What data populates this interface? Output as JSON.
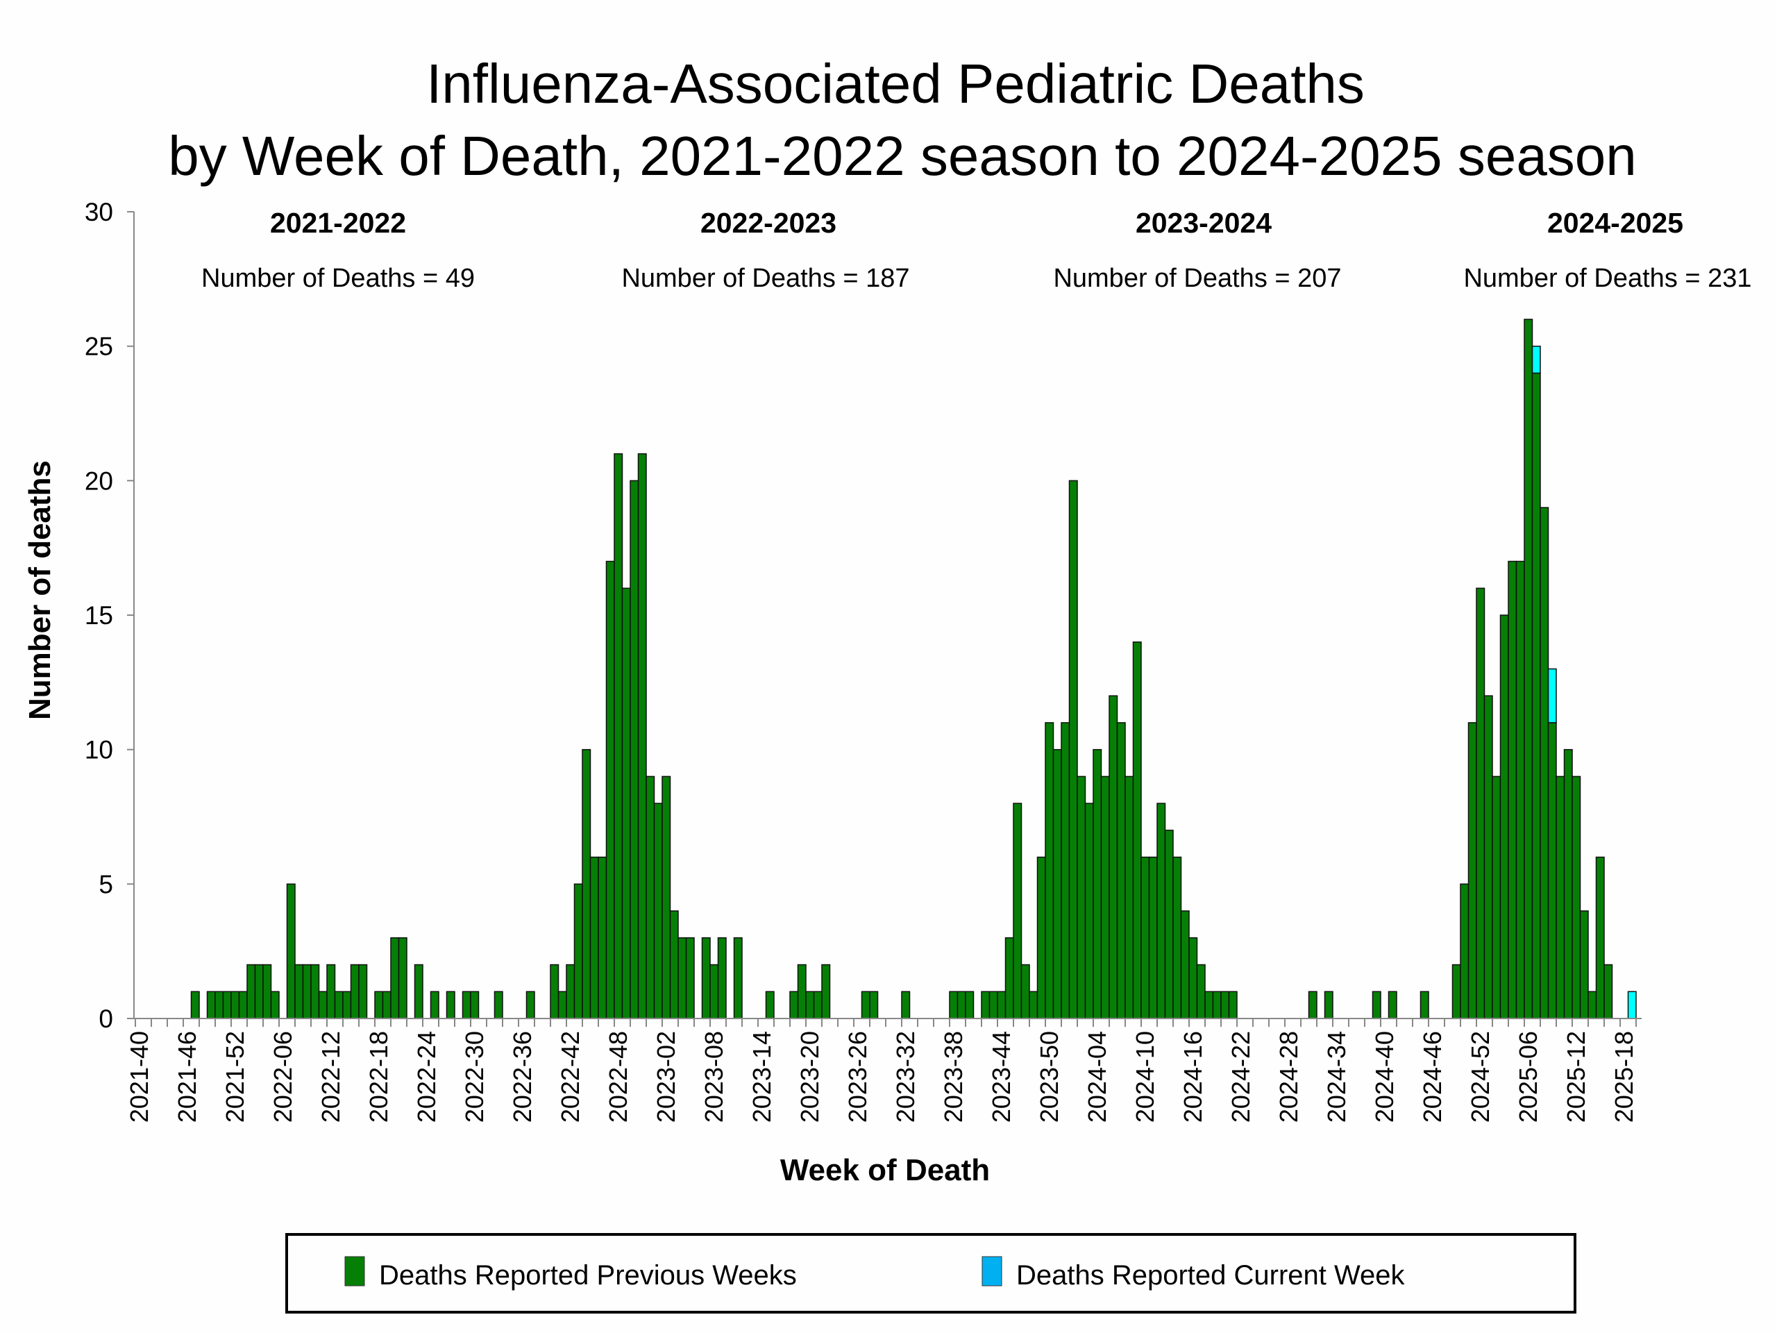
{
  "chart_data": {
    "type": "bar",
    "stacked": true,
    "title": [
      "Influenza-Associated Pediatric Deaths",
      "by Week of Death, 2021-2022 season to 2024-2025 season"
    ],
    "xlabel": "Week of Death",
    "ylabel": "Number of deaths",
    "ylim": [
      0,
      30
    ],
    "yticks": [
      0,
      5,
      10,
      15,
      20,
      25,
      30
    ],
    "grid": false,
    "legend_position": "bottom",
    "categories": [
      "2021-40",
      "2021-41",
      "2021-42",
      "2021-43",
      "2021-44",
      "2021-45",
      "2021-46",
      "2021-47",
      "2021-48",
      "2021-49",
      "2021-50",
      "2021-51",
      "2021-52",
      "2022-01",
      "2022-02",
      "2022-03",
      "2022-04",
      "2022-05",
      "2022-06",
      "2022-07",
      "2022-08",
      "2022-09",
      "2022-10",
      "2022-11",
      "2022-12",
      "2022-13",
      "2022-14",
      "2022-15",
      "2022-16",
      "2022-17",
      "2022-18",
      "2022-19",
      "2022-20",
      "2022-21",
      "2022-22",
      "2022-23",
      "2022-24",
      "2022-25",
      "2022-26",
      "2022-27",
      "2022-28",
      "2022-29",
      "2022-30",
      "2022-31",
      "2022-32",
      "2022-33",
      "2022-34",
      "2022-35",
      "2022-36",
      "2022-37",
      "2022-38",
      "2022-39",
      "2022-40",
      "2022-41",
      "2022-42",
      "2022-43",
      "2022-44",
      "2022-45",
      "2022-46",
      "2022-47",
      "2022-48",
      "2022-49",
      "2022-50",
      "2022-51",
      "2022-52",
      "2023-01",
      "2023-02",
      "2023-03",
      "2023-04",
      "2023-05",
      "2023-06",
      "2023-07",
      "2023-08",
      "2023-09",
      "2023-10",
      "2023-11",
      "2023-12",
      "2023-13",
      "2023-14",
      "2023-15",
      "2023-16",
      "2023-17",
      "2023-18",
      "2023-19",
      "2023-20",
      "2023-21",
      "2023-22",
      "2023-23",
      "2023-24",
      "2023-25",
      "2023-26",
      "2023-27",
      "2023-28",
      "2023-29",
      "2023-30",
      "2023-31",
      "2023-32",
      "2023-33",
      "2023-34",
      "2023-35",
      "2023-36",
      "2023-37",
      "2023-38",
      "2023-39",
      "2023-40",
      "2023-41",
      "2023-42",
      "2023-43",
      "2023-44",
      "2023-45",
      "2023-46",
      "2023-47",
      "2023-48",
      "2023-49",
      "2023-50",
      "2023-51",
      "2023-52",
      "2024-01",
      "2024-02",
      "2024-03",
      "2024-04",
      "2024-05",
      "2024-06",
      "2024-07",
      "2024-08",
      "2024-09",
      "2024-10",
      "2024-11",
      "2024-12",
      "2024-13",
      "2024-14",
      "2024-15",
      "2024-16",
      "2024-17",
      "2024-18",
      "2024-19",
      "2024-20",
      "2024-21",
      "2024-22",
      "2024-23",
      "2024-24",
      "2024-25",
      "2024-26",
      "2024-27",
      "2024-28",
      "2024-29",
      "2024-30",
      "2024-31",
      "2024-32",
      "2024-33",
      "2024-34",
      "2024-35",
      "2024-36",
      "2024-37",
      "2024-38",
      "2024-39",
      "2024-40",
      "2024-41",
      "2024-42",
      "2024-43",
      "2024-44",
      "2024-45",
      "2024-46",
      "2024-47",
      "2024-48",
      "2024-49",
      "2024-50",
      "2024-51",
      "2024-52",
      "2025-01",
      "2025-02",
      "2025-03",
      "2025-04",
      "2025-05",
      "2025-06",
      "2025-07",
      "2025-08",
      "2025-09",
      "2025-10",
      "2025-11",
      "2025-12",
      "2025-13",
      "2025-14",
      "2025-15",
      "2025-16",
      "2025-17",
      "2025-18",
      "2025-19"
    ],
    "tick_every": 6,
    "series": [
      {
        "name": "Deaths Reported Previous Weeks",
        "color": "#067F06",
        "values": [
          0,
          0,
          0,
          0,
          0,
          0,
          0,
          1,
          0,
          1,
          1,
          1,
          1,
          1,
          2,
          2,
          2,
          1,
          0,
          5,
          2,
          2,
          2,
          1,
          2,
          1,
          1,
          2,
          2,
          0,
          1,
          1,
          3,
          3,
          0,
          2,
          0,
          1,
          0,
          1,
          0,
          1,
          1,
          0,
          0,
          1,
          0,
          0,
          0,
          1,
          0,
          0,
          2,
          1,
          2,
          5,
          10,
          6,
          6,
          17,
          21,
          16,
          20,
          21,
          9,
          8,
          9,
          4,
          3,
          3,
          0,
          3,
          2,
          3,
          0,
          3,
          0,
          0,
          0,
          1,
          0,
          0,
          1,
          2,
          1,
          1,
          2,
          0,
          0,
          0,
          0,
          1,
          1,
          0,
          0,
          0,
          1,
          0,
          0,
          0,
          0,
          0,
          1,
          1,
          1,
          0,
          1,
          1,
          1,
          3,
          8,
          2,
          1,
          6,
          11,
          10,
          11,
          20,
          9,
          8,
          10,
          9,
          12,
          11,
          9,
          14,
          6,
          6,
          8,
          7,
          6,
          4,
          3,
          2,
          1,
          1,
          1,
          1,
          0,
          0,
          0,
          0,
          0,
          0,
          0,
          0,
          0,
          1,
          0,
          1,
          0,
          0,
          0,
          0,
          0,
          1,
          0,
          1,
          0,
          0,
          0,
          1,
          0,
          0,
          0,
          2,
          5,
          11,
          16,
          12,
          9,
          15,
          17,
          17,
          26,
          24,
          19,
          11,
          9,
          10,
          9,
          4,
          1,
          6,
          2,
          0,
          0,
          0
        ]
      },
      {
        "name": "Deaths Reported Current Week",
        "color": "#00FFFF",
        "legend_color": "#00B0F0",
        "values": [
          0,
          0,
          0,
          0,
          0,
          0,
          0,
          0,
          0,
          0,
          0,
          0,
          0,
          0,
          0,
          0,
          0,
          0,
          0,
          0,
          0,
          0,
          0,
          0,
          0,
          0,
          0,
          0,
          0,
          0,
          0,
          0,
          0,
          0,
          0,
          0,
          0,
          0,
          0,
          0,
          0,
          0,
          0,
          0,
          0,
          0,
          0,
          0,
          0,
          0,
          0,
          0,
          0,
          0,
          0,
          0,
          0,
          0,
          0,
          0,
          0,
          0,
          0,
          0,
          0,
          0,
          0,
          0,
          0,
          0,
          0,
          0,
          0,
          0,
          0,
          0,
          0,
          0,
          0,
          0,
          0,
          0,
          0,
          0,
          0,
          0,
          0,
          0,
          0,
          0,
          0,
          0,
          0,
          0,
          0,
          0,
          0,
          0,
          0,
          0,
          0,
          0,
          0,
          0,
          0,
          0,
          0,
          0,
          0,
          0,
          0,
          0,
          0,
          0,
          0,
          0,
          0,
          0,
          0,
          0,
          0,
          0,
          0,
          0,
          0,
          0,
          0,
          0,
          0,
          0,
          0,
          0,
          0,
          0,
          0,
          0,
          0,
          0,
          0,
          0,
          0,
          0,
          0,
          0,
          0,
          0,
          0,
          0,
          0,
          0,
          0,
          0,
          0,
          0,
          0,
          0,
          0,
          0,
          0,
          0,
          0,
          0,
          0,
          0,
          0,
          0,
          0,
          0,
          0,
          0,
          0,
          0,
          0,
          0,
          0,
          1,
          0,
          2,
          0,
          0,
          0,
          0,
          0,
          0,
          0,
          0,
          0,
          1
        ]
      }
    ],
    "annotations": [
      {
        "season": "2021-2022",
        "label": "Number of Deaths = 49"
      },
      {
        "season": "2022-2023",
        "label": "Number of Deaths = 187"
      },
      {
        "season": "2023-2024",
        "label": "Number of Deaths = 207"
      },
      {
        "season": "2024-2025",
        "label": "Number of Deaths = 231"
      }
    ]
  }
}
